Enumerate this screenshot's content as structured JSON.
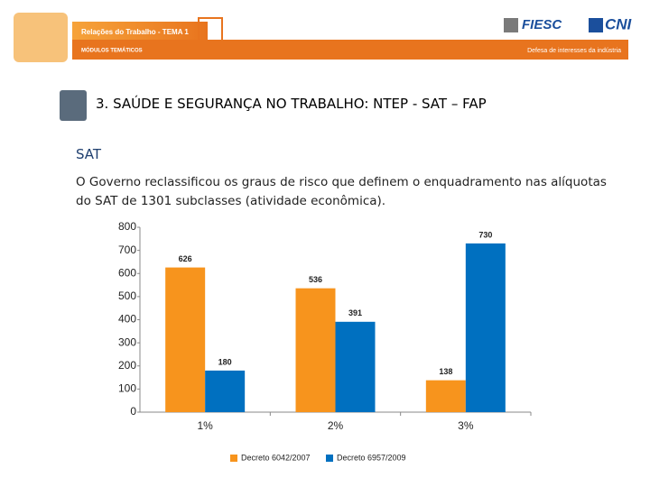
{
  "header": {
    "title": "Relações do Trabalho - TEMA 1",
    "subtitle": "MÓDULOS TEMÁTICOS",
    "logo_left": "FIESC",
    "logo_right": "CNI",
    "tagline": "Defesa de interesses da indústria"
  },
  "heading": "3. SAÚDE E SEGURANÇA NO TRABALHO: NTEP - SAT – FAP",
  "section": "SAT",
  "body": "O Governo reclassificou os graus de risco que definem o enquadramento nas alíquotas do SAT de 1301 subclasses (atividade econômica).",
  "chart_data": {
    "type": "bar",
    "categories": [
      "1%",
      "2%",
      "3%"
    ],
    "series": [
      {
        "name": "Decreto 6042/2007",
        "color": "#f7941d",
        "values": [
          626,
          536,
          138
        ]
      },
      {
        "name": "Decreto 6957/2009",
        "color": "#0070c0",
        "values": [
          180,
          391,
          730
        ]
      }
    ],
    "ylim": [
      0,
      800
    ],
    "yticks": [
      0,
      100,
      200,
      300,
      400,
      500,
      600,
      700,
      800
    ],
    "grid": false,
    "legend": "bottom"
  }
}
